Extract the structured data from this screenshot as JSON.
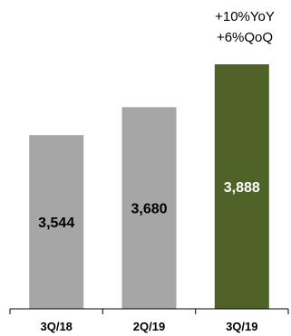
{
  "chart_data": {
    "type": "bar",
    "categories": [
      "3Q/18",
      "2Q/19",
      "3Q/19"
    ],
    "values": [
      3544,
      3680,
      3888
    ],
    "value_labels": [
      "3,544",
      "3,680",
      "3,888"
    ],
    "bar_colors": [
      "#a6a6a6",
      "#a6a6a6",
      "#4f6228"
    ],
    "label_colors": [
      "#000000",
      "#000000",
      "#ffffff"
    ],
    "annotations": [
      "+10%YoY",
      "+6%QoQ"
    ],
    "title": "",
    "xlabel": "",
    "ylabel": "",
    "grid": false,
    "legend": "none"
  }
}
